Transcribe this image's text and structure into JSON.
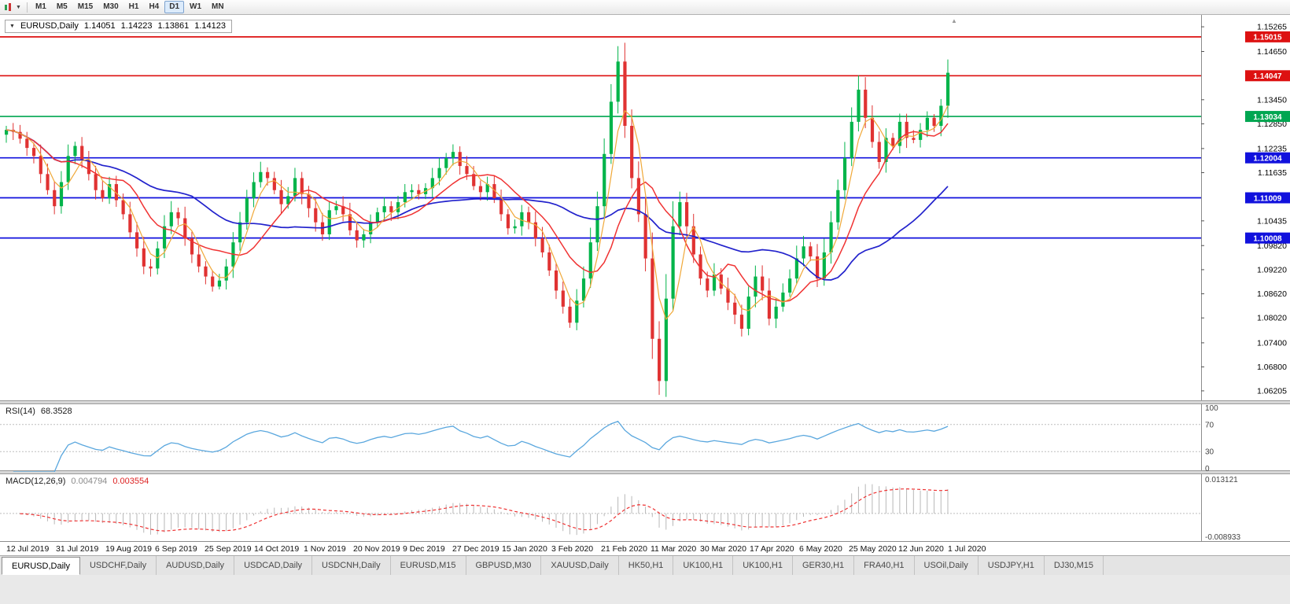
{
  "toolbar": {
    "timeframes": [
      "M1",
      "M5",
      "M15",
      "M30",
      "H1",
      "H4",
      "D1",
      "W1",
      "MN"
    ],
    "selected_timeframe": "D1"
  },
  "icons": {
    "title_dropdown": "▼",
    "toolbar_caret": "▼",
    "scroll_marker": "▲"
  },
  "chart_title": {
    "symbol": "EURUSD,Daily",
    "open": "1.14051",
    "high": "1.14223",
    "low": "1.13861",
    "close": "1.14123"
  },
  "rsi": {
    "label": "RSI(14)",
    "value": "68.3528",
    "scale_labels": [
      "100",
      "70",
      "30",
      "0"
    ],
    "level_lines": [
      70,
      30
    ]
  },
  "macd": {
    "label": "MACD(12,26,9)",
    "value": "0.004794",
    "signal_value": "0.003554",
    "scale_top": "0.013121",
    "scale_bottom": "-0.008933"
  },
  "time_axis": {
    "labels": [
      "12 Jul 2019",
      "31 Jul 2019",
      "19 Aug 2019",
      "6 Sep 2019",
      "25 Sep 2019",
      "14 Oct 2019",
      "1 Nov 2019",
      "20 Nov 2019",
      "9 Dec 2019",
      "27 Dec 2019",
      "15 Jan 2020",
      "3 Feb 2020",
      "21 Feb 2020",
      "11 Mar 2020",
      "30 Mar 2020",
      "17 Apr 2020",
      "6 May 2020",
      "25 May 2020",
      "12 Jun 2020",
      "1 Jul 2020"
    ]
  },
  "tabs": [
    {
      "label": "EURUSD,Daily",
      "active": true
    },
    {
      "label": "USDCHF,Daily",
      "active": false
    },
    {
      "label": "AUDUSD,Daily",
      "active": false
    },
    {
      "label": "USDCAD,Daily",
      "active": false
    },
    {
      "label": "USDCNH,Daily",
      "active": false
    },
    {
      "label": "EURUSD,M15",
      "active": false
    },
    {
      "label": "GBPUSD,M30",
      "active": false
    },
    {
      "label": "XAUUSD,Daily",
      "active": false
    },
    {
      "label": "HK50,H1",
      "active": false
    },
    {
      "label": "UK100,H1",
      "active": false
    },
    {
      "label": "UK100,H1",
      "active": false
    },
    {
      "label": "GER30,H1",
      "active": false
    },
    {
      "label": "FRA40,H1",
      "active": false
    },
    {
      "label": "USOil,Daily",
      "active": false
    },
    {
      "label": "USDJPY,H1",
      "active": false
    },
    {
      "label": "DJ30,M15",
      "active": false
    }
  ],
  "colors": {
    "bull": "#00b44a",
    "bear": "#e03232",
    "ma_fast": "#f0a838",
    "ma_mid": "#f03333",
    "ma_slow": "#2222cc",
    "rsi_line": "#5aa7de",
    "macd_hist": "#b8b8b8",
    "macd_signal": "#ee3333",
    "grid": "#bdbdbd",
    "scale_text": "#000000",
    "badge_text": "#ffffff"
  },
  "chart_data": {
    "type": "candlestick",
    "symbol": "EURUSD",
    "period": "Daily",
    "last_ohlc": {
      "open": 1.14051,
      "high": 1.14223,
      "low": 1.13861,
      "close": 1.14123
    },
    "x_range": [
      "12 Jul 2019",
      "14 Jul 2020"
    ],
    "y_axis_range": [
      1.0593,
      1.1556
    ],
    "y_ticks": [
      "1.15265",
      "1.14650",
      "1.13450",
      "1.12850",
      "1.12235",
      "1.11635",
      "1.10435",
      "1.09820",
      "1.09220",
      "1.08620",
      "1.08020",
      "1.07400",
      "1.06800",
      "1.06205"
    ],
    "horizontal_levels": [
      {
        "price": 1.15015,
        "label": "1.15015",
        "color": "#dd1111"
      },
      {
        "price": 1.14047,
        "label": "1.14047",
        "color": "#dd1111"
      },
      {
        "price": 1.13034,
        "label": "1.13034",
        "color": "#00a651"
      },
      {
        "price": 1.12004,
        "label": "1.12004",
        "color": "#1111dd"
      },
      {
        "price": 1.11009,
        "label": "1.11009",
        "color": "#1111dd"
      },
      {
        "price": 1.10008,
        "label": "1.10008",
        "color": "#1111dd"
      }
    ],
    "moving_average_periods": {
      "fast": 4,
      "mid": 10,
      "slow": 28
    },
    "closes": [
      1.127,
      1.1265,
      1.1248,
      1.1225,
      1.1205,
      1.116,
      1.112,
      1.108,
      1.114,
      1.1205,
      1.123,
      1.1195,
      1.116,
      1.112,
      1.11,
      1.1135,
      1.1095,
      1.106,
      1.1015,
      1.0975,
      1.093,
      1.0925,
      1.0975,
      1.103,
      1.1065,
      1.105,
      1.1,
      1.096,
      1.093,
      1.0905,
      1.088,
      1.0895,
      1.093,
      1.099,
      1.104,
      1.11,
      1.114,
      1.1165,
      1.115,
      1.112,
      1.1085,
      1.1105,
      1.115,
      1.111,
      1.1075,
      1.104,
      1.101,
      1.107,
      1.108,
      1.106,
      1.102,
      1.0995,
      1.101,
      1.104,
      1.1065,
      1.108,
      1.1065,
      1.109,
      1.1115,
      1.112,
      1.111,
      1.1125,
      1.115,
      1.1175,
      1.12,
      1.1215,
      1.118,
      1.116,
      1.113,
      1.1115,
      1.1135,
      1.11,
      1.106,
      1.1025,
      1.103,
      1.1065,
      1.104,
      1.1,
      1.0965,
      1.092,
      1.087,
      1.083,
      1.079,
      1.0845,
      1.09,
      1.099,
      1.108,
      1.121,
      1.134,
      1.144,
      1.128,
      1.115,
      1.106,
      1.095,
      1.075,
      1.0645,
      1.085,
      1.103,
      1.109,
      1.103,
      1.096,
      1.09,
      1.087,
      1.091,
      1.0875,
      1.084,
      1.081,
      1.0775,
      1.0855,
      1.0905,
      1.087,
      1.08,
      1.083,
      1.0865,
      1.09,
      1.095,
      1.098,
      1.0955,
      1.09,
      1.0965,
      1.104,
      1.112,
      1.12,
      1.129,
      1.137,
      1.13,
      1.124,
      1.119,
      1.125,
      1.123,
      1.129,
      1.125,
      1.1245,
      1.127,
      1.13,
      1.128,
      1.133,
      1.1412
    ],
    "indicators": [
      {
        "name": "RSI",
        "params": [
          14
        ],
        "last_value": 68.3528,
        "levels": [
          30,
          70
        ],
        "scale": [
          0,
          100
        ]
      },
      {
        "name": "MACD",
        "params": [
          12,
          26,
          9
        ],
        "last_values": [
          0.004794,
          0.003554
        ],
        "scale": [
          0.013121,
          -0.008933
        ]
      }
    ]
  }
}
